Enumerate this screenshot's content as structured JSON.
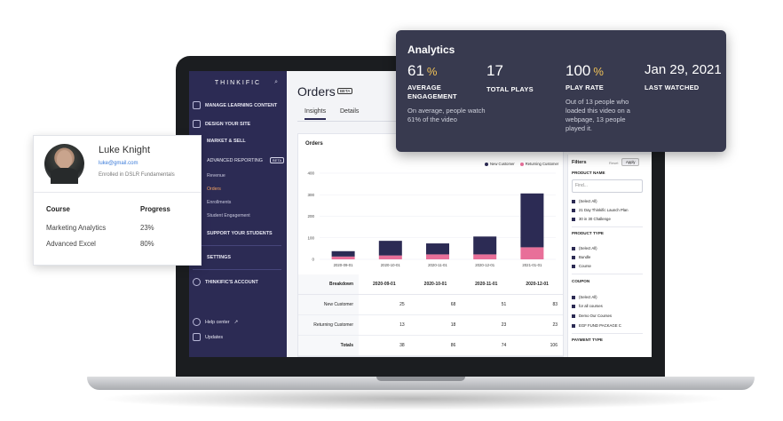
{
  "analytics": {
    "title": "Analytics",
    "metrics": [
      {
        "value": "61",
        "suffix": "%",
        "label": "AVERAGE ENGAGEMENT",
        "desc": "On average, people watch 61% of the video"
      },
      {
        "value": "17",
        "suffix": "",
        "label": "TOTAL PLAYS",
        "desc": ""
      },
      {
        "value": "100",
        "suffix": "%",
        "label": "PLAY RATE",
        "desc": "Out of 13 people who loaded this video on a webpage, 13 people played it."
      },
      {
        "value": "Jan 29, 2021",
        "suffix": "",
        "label": "LAST WATCHED",
        "desc": ""
      }
    ]
  },
  "sidebar": {
    "brand": "THINKIFIC",
    "search_icon": "search-icon",
    "items": [
      {
        "label": "MANAGE LEARNING CONTENT",
        "icon": "edit-icon"
      },
      {
        "label": "DESIGN YOUR SITE",
        "icon": "design-icon"
      },
      {
        "label": "MARKET & SELL",
        "icon": "cart-icon"
      },
      {
        "label": "ADVANCED REPORTING",
        "badge": "BETA"
      },
      {
        "label": "SUPPORT YOUR STUDENTS"
      },
      {
        "label": "SETTINGS"
      },
      {
        "label": "THINKIFIC'S ACCOUNT",
        "icon": "user-icon"
      }
    ],
    "sub_items": [
      "Revenue",
      "Orders",
      "Enrollments",
      "Student Engagement"
    ],
    "help": "Help center",
    "help_arrow": "↗",
    "updates": "Updates"
  },
  "main": {
    "title": "Orders",
    "title_badge": "BETA",
    "tabs": [
      "Insights",
      "Details"
    ],
    "card_title": "Orders",
    "legend": [
      "New Customer",
      "Returning Customer"
    ]
  },
  "chart_data": {
    "type": "bar",
    "stacked": true,
    "categories": [
      "2020-09-01",
      "2020-10-01",
      "2020-11-01",
      "2020-12-01",
      "2021-01-01"
    ],
    "series": [
      {
        "name": "New Customer",
        "values": [
          25,
          68,
          51,
          83,
          250
        ],
        "color": "#2c2b54"
      },
      {
        "name": "Returning Customer",
        "values": [
          13,
          18,
          23,
          23,
          56
        ],
        "color": "#e86f99"
      }
    ],
    "yticks": [
      "0",
      "100",
      "200",
      "300",
      "400"
    ],
    "ylim": [
      0,
      400
    ]
  },
  "table": {
    "headers": [
      "Breakdown",
      "2020-09-01",
      "2020-10-01",
      "2020-11-01",
      "2020-12-01"
    ],
    "rows": [
      [
        "New Customer",
        "25",
        "68",
        "51",
        "83"
      ],
      [
        "Returning Customer",
        "13",
        "18",
        "23",
        "23"
      ],
      [
        "Totals",
        "38",
        "86",
        "74",
        "106"
      ]
    ]
  },
  "filters": {
    "title": "Filters",
    "reset": "Reset",
    "apply": "Apply",
    "product_name": "PRODUCT NAME",
    "search_placeholder": "Find...",
    "product_name_options": [
      "(Select All)",
      "21 Day Thinkific Launch Plan",
      "30 in 30 Challenge"
    ],
    "product_type": "PRODUCT TYPE",
    "product_type_options": [
      "(Select All)",
      "Bundle",
      "Course"
    ],
    "coupon": "COUPON",
    "coupon_options": [
      "(Select All)",
      "for all courses",
      "Demo Our Courses",
      "EGF FUND PACKAGE C"
    ],
    "payment_type": "PAYMENT TYPE"
  },
  "student": {
    "name": "Luke Knight",
    "email": "luke@gmail.com",
    "enrolled": "Enrolled in DSLR Fundamentals",
    "col_course": "Course",
    "col_progress": "Progress",
    "rows": [
      {
        "course": "Marketing Analytics",
        "progress": "23%"
      },
      {
        "course": "Advanced Excel",
        "progress": "80%"
      }
    ]
  }
}
